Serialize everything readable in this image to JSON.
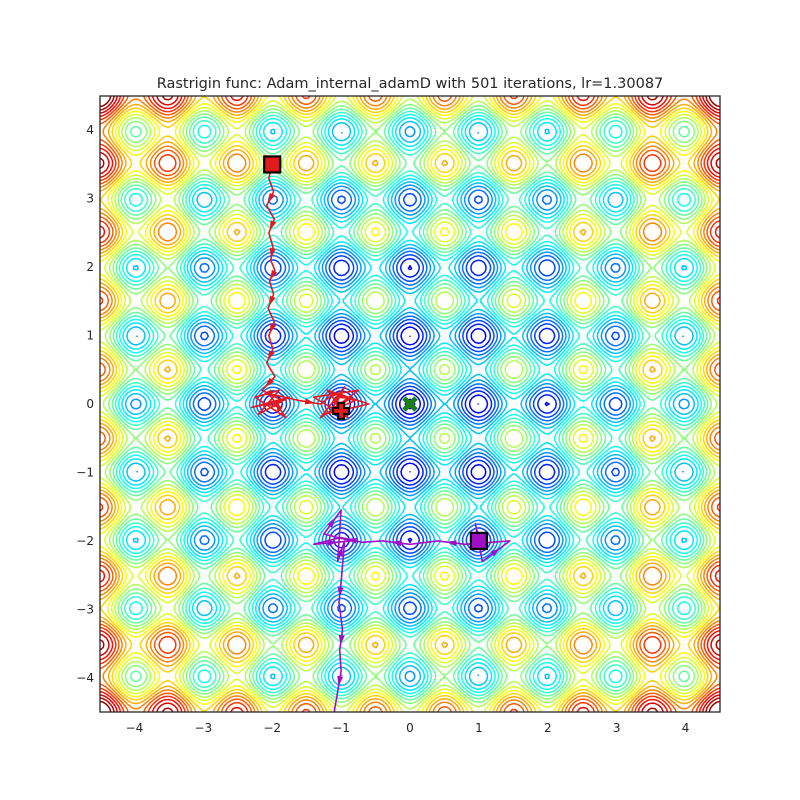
{
  "chart_data": {
    "type": "contour",
    "title": "Rastrigin func: Adam_internal_adamD with 501 iterations, lr=1.30087",
    "xlabel": "",
    "ylabel": "",
    "xlim": [
      -4.5,
      4.5
    ],
    "ylim": [
      -4.5,
      4.5
    ],
    "x_ticks": [
      -4,
      -3,
      -2,
      -1,
      0,
      1,
      2,
      3,
      4
    ],
    "y_ticks": [
      -4,
      -3,
      -2,
      -1,
      0,
      1,
      2,
      3,
      4
    ],
    "x_tick_labels": [
      "−4",
      "−3",
      "−2",
      "−1",
      "0",
      "1",
      "2",
      "3",
      "4"
    ],
    "y_tick_labels": [
      "−4",
      "−3",
      "−2",
      "−1",
      "0",
      "1",
      "2",
      "3",
      "4"
    ],
    "grid": false,
    "colormap": "jet",
    "function": "rastrigin",
    "global_minimum": {
      "x": 0,
      "y": 0,
      "marker": "x",
      "color": "#1a7f1a"
    },
    "series": [
      {
        "color": "#e31a1c",
        "start": {
          "x": -2.0,
          "y": 3.5,
          "marker": "square"
        },
        "end": {
          "x": -1.0,
          "y": -0.1,
          "marker": "plus"
        },
        "path": [
          [
            -2.0,
            3.5
          ],
          [
            -2.05,
            3.3
          ],
          [
            -1.98,
            3.1
          ],
          [
            -2.08,
            2.9
          ],
          [
            -1.97,
            2.7
          ],
          [
            -2.05,
            2.5
          ],
          [
            -1.99,
            2.3
          ],
          [
            -2.02,
            2.1
          ],
          [
            -1.96,
            1.95
          ],
          [
            -2.04,
            1.8
          ],
          [
            -1.98,
            1.6
          ],
          [
            -2.06,
            1.4
          ],
          [
            -1.97,
            1.2
          ],
          [
            -2.05,
            1.0
          ],
          [
            -1.99,
            0.8
          ],
          [
            -2.08,
            0.6
          ],
          [
            -1.96,
            0.4
          ],
          [
            -2.15,
            0.2
          ],
          [
            -1.85,
            0.05
          ],
          [
            -2.3,
            -0.05
          ],
          [
            -1.75,
            0.1
          ],
          [
            -2.2,
            -0.15
          ],
          [
            -1.9,
            0.2
          ],
          [
            -2.25,
            0.1
          ],
          [
            -1.8,
            -0.2
          ],
          [
            -2.05,
            0.15
          ],
          [
            -1.6,
            0.05
          ],
          [
            -1.3,
            0.0
          ],
          [
            -1.1,
            0.15
          ],
          [
            -0.8,
            0.05
          ],
          [
            -1.25,
            -0.15
          ],
          [
            -0.6,
            0.0
          ],
          [
            -1.2,
            0.2
          ],
          [
            -0.9,
            -0.2
          ],
          [
            -1.4,
            0.1
          ],
          [
            -0.75,
            0.2
          ],
          [
            -1.15,
            -0.1
          ],
          [
            -0.95,
            0.25
          ],
          [
            -1.3,
            -0.2
          ],
          [
            -0.85,
            0.1
          ],
          [
            -1.05,
            -0.05
          ],
          [
            -1.0,
            -0.1
          ]
        ]
      },
      {
        "color": "#a00fc8",
        "start": {
          "x": 1.0,
          "y": -2.0,
          "marker": "square"
        },
        "end": {
          "x": -1.1,
          "y": -4.5,
          "marker": "none"
        },
        "path": [
          [
            1.0,
            -2.0
          ],
          [
            0.95,
            -1.75
          ],
          [
            1.05,
            -2.3
          ],
          [
            1.45,
            -2.0
          ],
          [
            0.8,
            -2.05
          ],
          [
            0.4,
            -2.0
          ],
          [
            0.0,
            -2.05
          ],
          [
            -0.4,
            -2.0
          ],
          [
            -0.7,
            -2.02
          ],
          [
            -1.0,
            -1.95
          ],
          [
            -1.4,
            -2.05
          ],
          [
            -0.85,
            -2.0
          ],
          [
            -1.25,
            -1.9
          ],
          [
            -1.0,
            -1.55
          ],
          [
            -1.05,
            -2.3
          ],
          [
            -0.95,
            -2.0
          ],
          [
            -1.0,
            -2.6
          ],
          [
            -1.03,
            -2.9
          ],
          [
            -0.98,
            -3.3
          ],
          [
            -1.02,
            -3.6
          ],
          [
            -1.0,
            -3.9
          ],
          [
            -1.05,
            -4.2
          ],
          [
            -1.1,
            -4.5
          ]
        ]
      }
    ]
  }
}
